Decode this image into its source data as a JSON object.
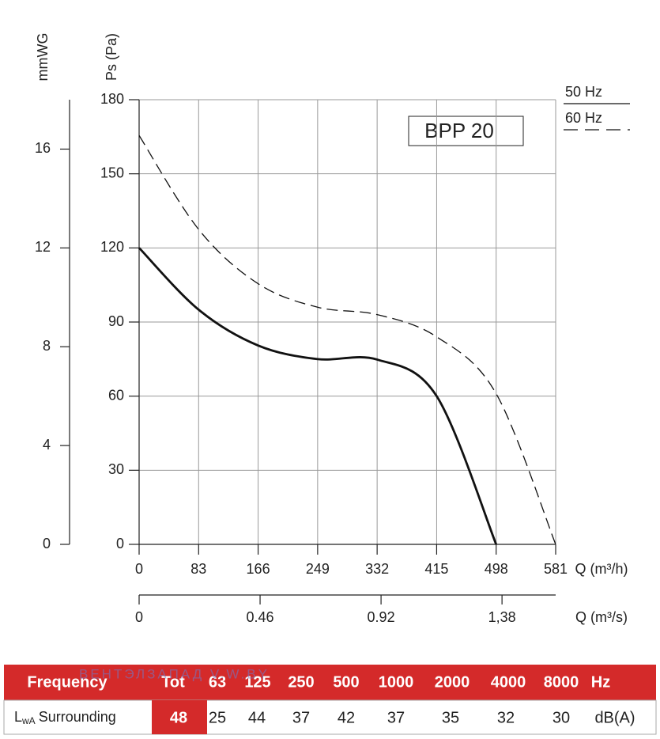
{
  "chart_data": {
    "type": "line",
    "y_label": "Ps (Pa)",
    "y2_label": "mmWG",
    "x_label": "Q (m³/h)",
    "x2_label": "Q (m³/s)",
    "annotation": "BPP 20",
    "x": [
      0,
      83,
      166,
      249,
      332,
      415,
      498,
      581
    ],
    "series": [
      {
        "name": "50 Hz",
        "color": "#111111",
        "dash": "solid",
        "values": [
          120,
          95,
          80.5,
          75,
          74.8,
          60,
          0,
          null
        ]
      },
      {
        "name": "60 Hz",
        "color": "#111111",
        "dash": "dashed",
        "values": [
          165.5,
          127.5,
          105.5,
          96,
          93,
          84,
          61,
          0
        ]
      }
    ],
    "xlim": [
      0,
      581
    ],
    "xticks": [
      0,
      83,
      166,
      249,
      332,
      415,
      498,
      581
    ],
    "ylim": [
      0,
      180
    ],
    "yticks": [
      0,
      30,
      60,
      90,
      120,
      150,
      180
    ],
    "y2lim": [
      0,
      18
    ],
    "y2ticks": [
      0,
      4,
      8,
      12,
      16
    ],
    "x2lim": [
      0,
      1.584
    ],
    "x2ticks": [
      0,
      0.46,
      0.92,
      {
        "value": 1.38,
        "label": "1,38"
      }
    ],
    "grid": true
  },
  "table": {
    "header": [
      "Frequency",
      "Tot",
      63,
      125,
      250,
      500,
      1000,
      2000,
      4000,
      8000,
      "Hz"
    ],
    "row_label": {
      "symbol": "L",
      "subscript": "wA",
      "text": "Surrounding"
    },
    "row": [
      48,
      25,
      44,
      37,
      42,
      37,
      35,
      32,
      30,
      "dB(A)"
    ]
  },
  "watermark": "ВЕНТЭЛЗАПАД   V.W.BY"
}
